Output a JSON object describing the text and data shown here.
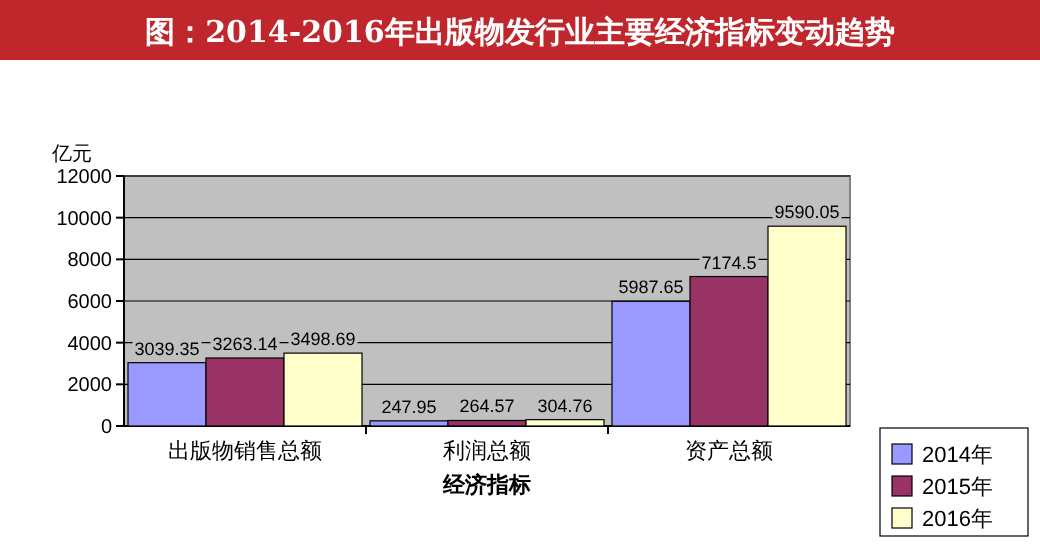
{
  "chart_data": {
    "type": "bar",
    "title": "图：2014-2016年出版物发行业主要经济指标变动趋势",
    "ylabel": "亿元",
    "xlabel": "经济指标",
    "categories": [
      "出版物销售总额",
      "利润总额",
      "资产总额"
    ],
    "series": [
      {
        "name": "2014年",
        "color": "#9999ff",
        "values": [
          3039.35,
          247.95,
          5987.65
        ]
      },
      {
        "name": "2015年",
        "color": "#993366",
        "values": [
          3263.14,
          264.57,
          7174.5
        ]
      },
      {
        "name": "2016年",
        "color": "#ffffcc",
        "values": [
          3498.69,
          304.76,
          9590.05
        ]
      }
    ],
    "ylim": [
      0,
      12000
    ],
    "yticks": [
      0,
      2000,
      4000,
      6000,
      8000,
      10000,
      12000
    ],
    "grid": "y",
    "legend": "bottom right",
    "data_labels": true
  }
}
